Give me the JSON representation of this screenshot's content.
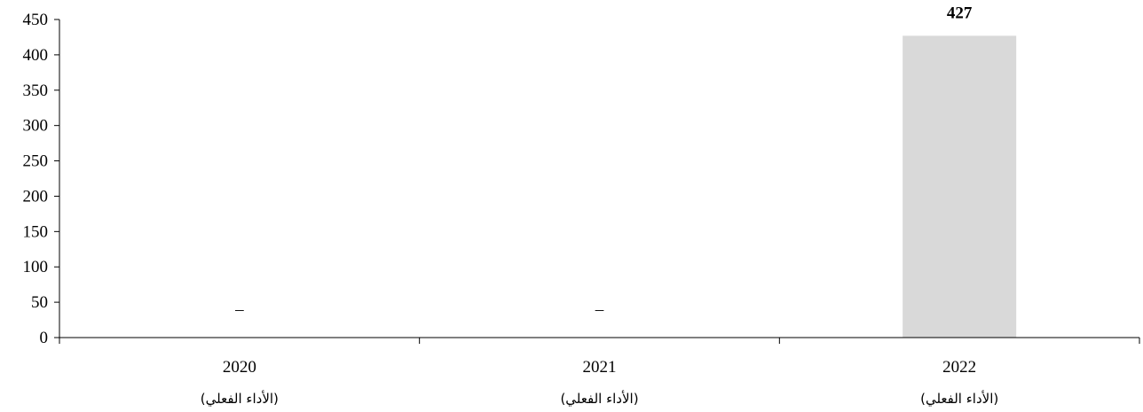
{
  "chart_data": {
    "type": "bar",
    "categories": [
      "2020",
      "2021",
      "2022"
    ],
    "category_sublabels": [
      "(الأداء الفعلي)",
      "(الأداء الفعلي)",
      "(الأداء الفعلي)"
    ],
    "values": [
      null,
      null,
      427
    ],
    "data_labels": [
      "–",
      "–",
      "427"
    ],
    "title": "",
    "xlabel": "",
    "ylabel": "",
    "ylim": [
      0,
      450
    ],
    "yticks": [
      0,
      50,
      100,
      150,
      200,
      250,
      300,
      350,
      400,
      450
    ],
    "grid": false,
    "legend": "none",
    "bar_color": "#d9d9d9",
    "axis_color": "#000000"
  }
}
